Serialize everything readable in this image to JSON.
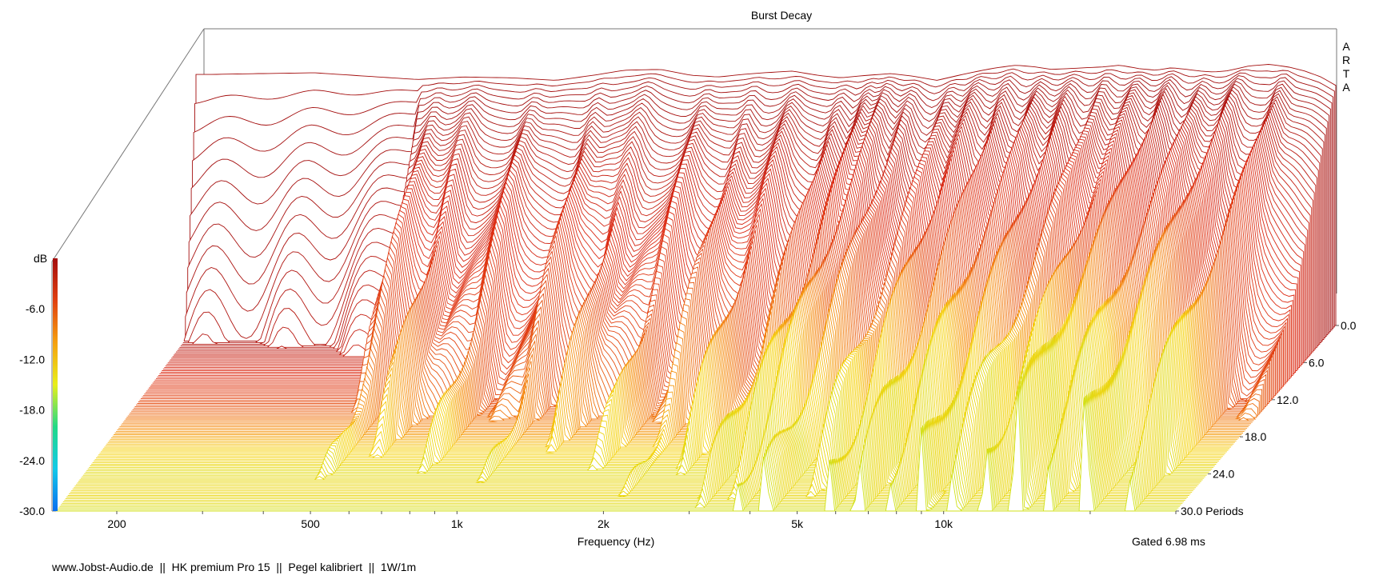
{
  "chart_data": {
    "type": "waterfall-3d",
    "title": "Burst Decay",
    "xlabel": "Frequency (Hz)",
    "ylabel": "dB",
    "zlabel": "Periods",
    "brand_vertical": "ARTA",
    "gate_info": "Gated 6.98 ms",
    "footer": "www.Jobst-Audio.de  ||  HK premium Pro 15  ||  Pegel kalibriert  ||  1W/1m",
    "x_scale": "log",
    "x_range": [
      150,
      30000
    ],
    "x_ticks": [
      {
        "value": 200,
        "label": "200"
      },
      {
        "value": 500,
        "label": "500"
      },
      {
        "value": 1000,
        "label": "1k"
      },
      {
        "value": 2000,
        "label": "2k"
      },
      {
        "value": 5000,
        "label": "5k"
      },
      {
        "value": 10000,
        "label": "10k"
      }
    ],
    "y_range": [
      -30,
      0
    ],
    "y_ticks": [
      {
        "value": -6,
        "label": "-6.0"
      },
      {
        "value": -12,
        "label": "-12.0"
      },
      {
        "value": -18,
        "label": "-18.0"
      },
      {
        "value": -24,
        "label": "-24.0"
      },
      {
        "value": -30,
        "label": "-30.0"
      }
    ],
    "z_range": [
      0,
      30
    ],
    "z_ticks": [
      {
        "value": 0,
        "label": "0.0"
      },
      {
        "value": 6,
        "label": "6.0"
      },
      {
        "value": 12,
        "label": "12.0"
      },
      {
        "value": 18,
        "label": "18.0"
      },
      {
        "value": 24,
        "label": "24.0"
      },
      {
        "value": 30,
        "label": "30.0"
      }
    ],
    "slice_count": 120,
    "base_response": {
      "freq": [
        160,
        200,
        260,
        330,
        420,
        520,
        650,
        800,
        950,
        1100,
        1300,
        1500,
        1700,
        1900,
        2100,
        2400,
        2700,
        3000,
        3400,
        3800,
        4200,
        4700,
        5200,
        5700,
        6200,
        6800,
        7400,
        8000,
        8700,
        9400,
        10200,
        11000,
        12000,
        13000,
        14000,
        15000,
        16000,
        17000,
        18000,
        19000,
        20000,
        22000,
        24000,
        26000,
        28000,
        30000
      ],
      "db": [
        -0.2,
        -0.1,
        0,
        -0.4,
        -0.8,
        -0.5,
        -0.6,
        -0.9,
        -0.3,
        0.3,
        0.4,
        -0.3,
        -0.5,
        -0.2,
        0.0,
        0.2,
        -0.3,
        -0.6,
        -0.3,
        -0.1,
        -0.4,
        -0.9,
        -0.3,
        0.2,
        0.6,
        0.9,
        0.7,
        0.4,
        0.5,
        0.6,
        0.7,
        0.9,
        0.5,
        0.3,
        0.6,
        0.4,
        0.2,
        0.1,
        0.2,
        0.5,
        0.8,
        1.0,
        0.7,
        0.2,
        -0.5,
        -1.5
      ]
    },
    "decay_ridges": [
      {
        "f": 470,
        "rate": 1.3
      },
      {
        "f": 560,
        "rate": 1.25
      },
      {
        "f": 740,
        "rate": 1.3
      },
      {
        "f": 1000,
        "rate": 1.35
      },
      {
        "f": 1250,
        "rate": 1.4
      },
      {
        "f": 1650,
        "rate": 1.25
      },
      {
        "f": 2050,
        "rate": 1.2
      },
      {
        "f": 2500,
        "rate": 1.15
      },
      {
        "f": 3100,
        "rate": 1.0
      },
      {
        "f": 3500,
        "rate": 0.9
      },
      {
        "f": 3800,
        "rate": 0.85
      },
      {
        "f": 4300,
        "rate": 0.85
      },
      {
        "f": 5100,
        "rate": 0.9
      },
      {
        "f": 5800,
        "rate": 0.85
      },
      {
        "f": 6700,
        "rate": 0.85
      },
      {
        "f": 7800,
        "rate": 0.8
      },
      {
        "f": 9000,
        "rate": 0.8
      },
      {
        "f": 10500,
        "rate": 0.75
      },
      {
        "f": 12200,
        "rate": 0.7
      },
      {
        "f": 14200,
        "rate": 0.6
      },
      {
        "f": 16500,
        "rate": 0.7
      },
      {
        "f": 19500,
        "rate": 0.65
      },
      {
        "f": 24000,
        "rate": 0.75
      }
    ],
    "spectrum_colors": [
      "#1a6bd9",
      "#12c9e8",
      "#22d987",
      "#b8ea1f",
      "#f5d20f",
      "#f58a0f",
      "#dc2a14",
      "#a30d0d"
    ],
    "colorbar_colors": [
      "#0a6ff0",
      "#12c9e8",
      "#22d987",
      "#e8ef1a",
      "#f5a00f",
      "#e04010",
      "#a30d0d"
    ],
    "base_plane_color": "#2f7fe0"
  }
}
